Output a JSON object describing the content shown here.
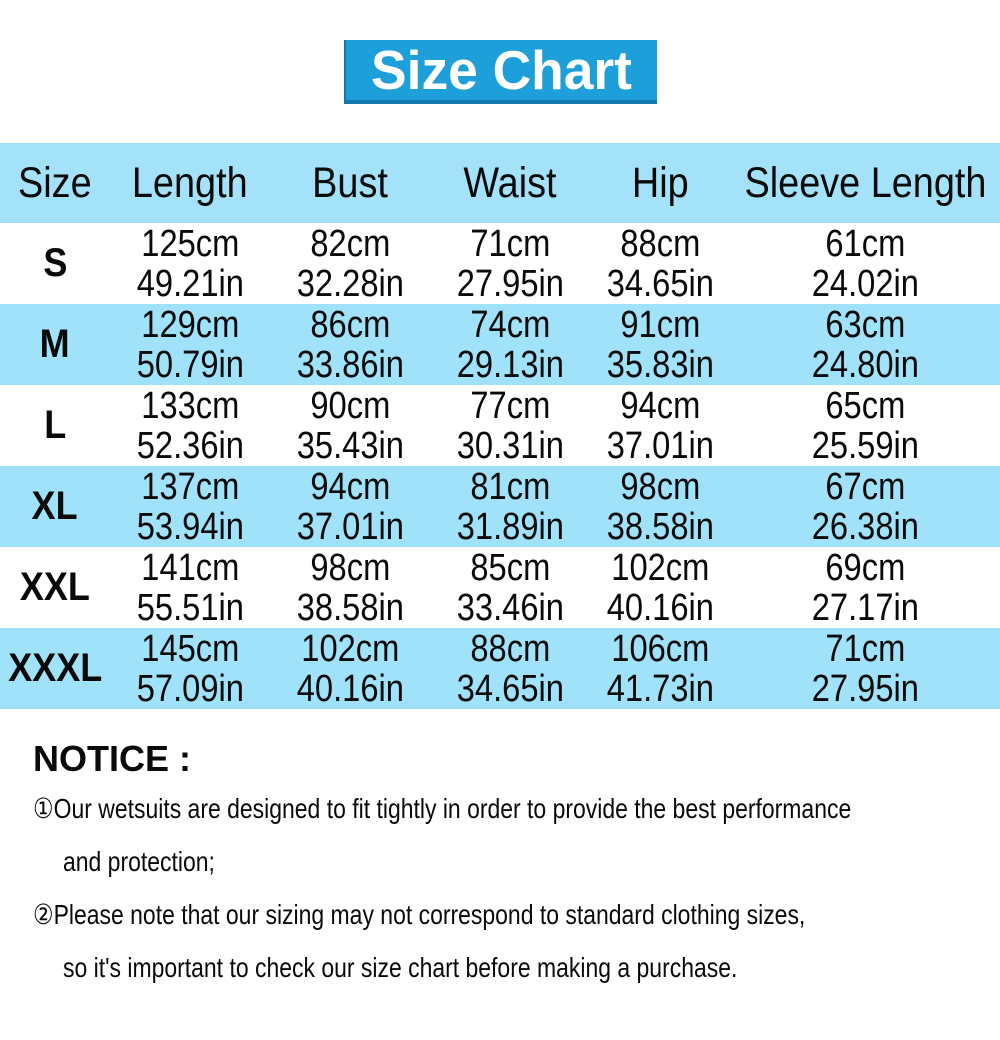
{
  "title": "Size Chart",
  "table": {
    "headers": [
      "Size",
      "Length",
      "Bust",
      "Waist",
      "Hip",
      "Sleeve Length"
    ],
    "rows": [
      {
        "size": "S",
        "cells": [
          [
            "125cm",
            "49.21in"
          ],
          [
            "82cm",
            "32.28in"
          ],
          [
            "71cm",
            "27.95in"
          ],
          [
            "88cm",
            "34.65in"
          ],
          [
            "61cm",
            "24.02in"
          ]
        ]
      },
      {
        "size": "M",
        "cells": [
          [
            "129cm",
            "50.79in"
          ],
          [
            "86cm",
            "33.86in"
          ],
          [
            "74cm",
            "29.13in"
          ],
          [
            "91cm",
            "35.83in"
          ],
          [
            "63cm",
            "24.80in"
          ]
        ]
      },
      {
        "size": "L",
        "cells": [
          [
            "133cm",
            "52.36in"
          ],
          [
            "90cm",
            "35.43in"
          ],
          [
            "77cm",
            "30.31in"
          ],
          [
            "94cm",
            "37.01in"
          ],
          [
            "65cm",
            "25.59in"
          ]
        ]
      },
      {
        "size": "XL",
        "cells": [
          [
            "137cm",
            "53.94in"
          ],
          [
            "94cm",
            "37.01in"
          ],
          [
            "81cm",
            "31.89in"
          ],
          [
            "98cm",
            "38.58in"
          ],
          [
            "67cm",
            "26.38in"
          ]
        ]
      },
      {
        "size": "XXL",
        "cells": [
          [
            "141cm",
            "55.51in"
          ],
          [
            "98cm",
            "38.58in"
          ],
          [
            "85cm",
            "33.46in"
          ],
          [
            "102cm",
            "40.16in"
          ],
          [
            "69cm",
            "27.17in"
          ]
        ]
      },
      {
        "size": "XXXL",
        "cells": [
          [
            "145cm",
            "57.09in"
          ],
          [
            "102cm",
            "40.16in"
          ],
          [
            "88cm",
            "34.65in"
          ],
          [
            "106cm",
            "41.73in"
          ],
          [
            "71cm",
            "27.95in"
          ]
        ]
      }
    ]
  },
  "notice": {
    "heading": "NOTICE :",
    "items": [
      {
        "lines": [
          "①Our wetsuits are designed to fit tightly in order to provide the best performance",
          "and protection;"
        ]
      },
      {
        "lines": [
          "②Please note that our sizing may not correspond to standard clothing sizes,",
          "so it's important to check our size chart before making a purchase."
        ]
      }
    ]
  },
  "colors": {
    "title_bg": "#1d9fd9",
    "title_border": "#1478ad",
    "title_text": "#ffffff",
    "header_bg": "#a3e2f9",
    "row_alt_bg": "#a0e2fa",
    "text": "#0a0a0a"
  }
}
